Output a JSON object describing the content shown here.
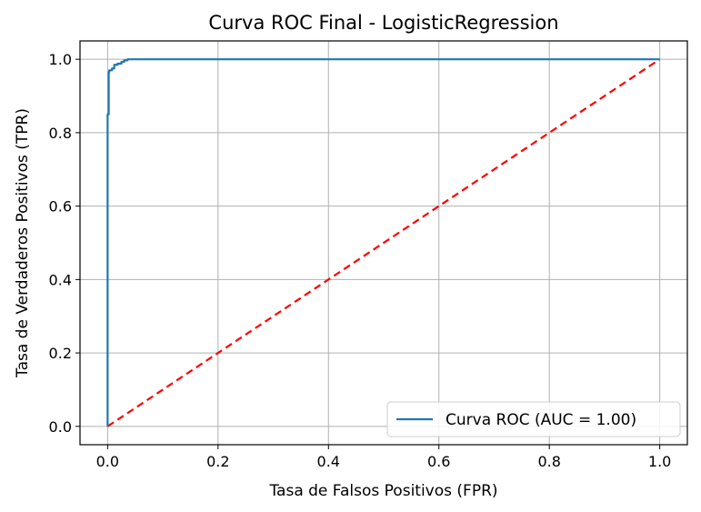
{
  "chart_data": {
    "type": "line",
    "title": "Curva ROC Final - LogisticRegression",
    "xlabel": "Tasa de Falsos Positivos (FPR)",
    "ylabel": "Tasa de Verdaderos Positivos (TPR)",
    "xlim": [
      -0.05,
      1.05
    ],
    "ylim": [
      -0.05,
      1.05
    ],
    "xticks": [
      0.0,
      0.2,
      0.4,
      0.6,
      0.8,
      1.0
    ],
    "yticks": [
      0.0,
      0.2,
      0.4,
      0.6,
      0.8,
      1.0
    ],
    "xtick_labels": [
      "0.0",
      "0.2",
      "0.4",
      "0.6",
      "0.8",
      "1.0"
    ],
    "ytick_labels": [
      "0.0",
      "0.2",
      "0.4",
      "0.6",
      "0.8",
      "1.0"
    ],
    "grid": true,
    "legend_position": "lower-right",
    "series": [
      {
        "name": "Curva ROC (AUC = 1.00)",
        "color": "#1f77b4",
        "style": "solid",
        "x": [
          0.0,
          0.0,
          0.002,
          0.002,
          0.003,
          0.003,
          0.008,
          0.008,
          0.012,
          0.012,
          0.018,
          0.018,
          0.025,
          0.025,
          0.03,
          0.03,
          0.036,
          0.036,
          1.0
        ],
        "y": [
          0.0,
          0.85,
          0.85,
          0.965,
          0.965,
          0.97,
          0.97,
          0.975,
          0.975,
          0.985,
          0.985,
          0.988,
          0.988,
          0.993,
          0.993,
          0.997,
          0.997,
          1.0,
          1.0
        ]
      },
      {
        "name": "",
        "color": "#ff0000",
        "style": "dashed",
        "x": [
          0.0,
          1.0
        ],
        "y": [
          0.0,
          1.0
        ]
      }
    ]
  }
}
